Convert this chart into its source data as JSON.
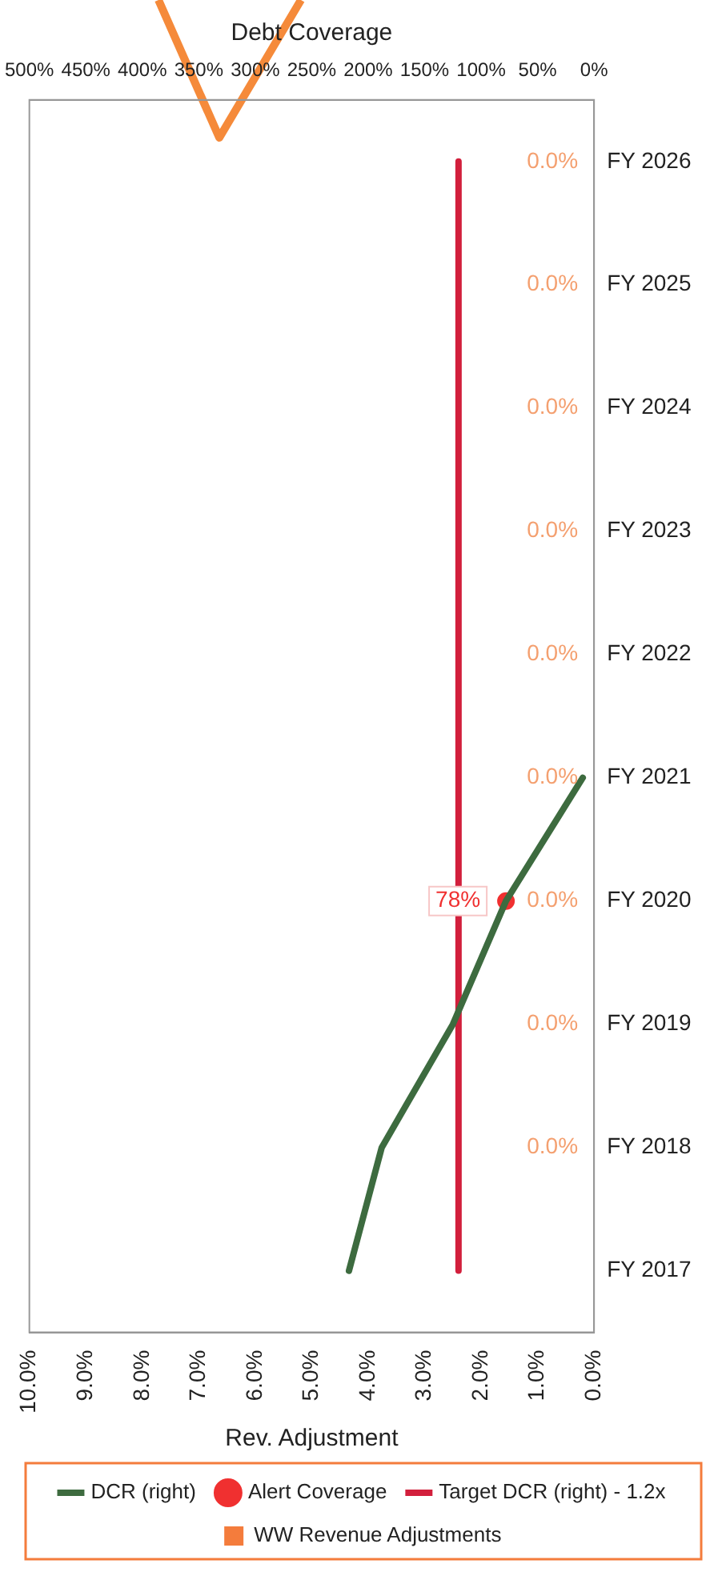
{
  "chart_data": {
    "type": "bar",
    "orientation": "horizontal",
    "xlabel": "Rev. Adjustment",
    "x2label": "Debt Coverage",
    "categories": [
      "FY 2026",
      "FY 2025",
      "FY 2024",
      "FY 2023",
      "FY 2022",
      "FY 2021",
      "FY 2020",
      "FY 2019",
      "FY 2018",
      "FY 2017"
    ],
    "xlim": [
      10,
      0
    ],
    "xticks": [
      {
        "value": 10,
        "label": "10.0%"
      },
      {
        "value": 9,
        "label": "9.0%"
      },
      {
        "value": 8,
        "label": "8.0%"
      },
      {
        "value": 7,
        "label": "7.0%"
      },
      {
        "value": 6,
        "label": "6.0%"
      },
      {
        "value": 5,
        "label": "5.0%"
      },
      {
        "value": 4,
        "label": "4.0%"
      },
      {
        "value": 3,
        "label": "3.0%"
      },
      {
        "value": 2,
        "label": "2.0%"
      },
      {
        "value": 1,
        "label": "1.0%"
      },
      {
        "value": 0,
        "label": "0.0%"
      }
    ],
    "x2lim": [
      500,
      0
    ],
    "x2ticks": [
      {
        "value": 500,
        "label": "500%"
      },
      {
        "value": 450,
        "label": "450%"
      },
      {
        "value": 400,
        "label": "400%"
      },
      {
        "value": 350,
        "label": "350%"
      },
      {
        "value": 300,
        "label": "300%"
      },
      {
        "value": 250,
        "label": "250%"
      },
      {
        "value": 200,
        "label": "200%"
      },
      {
        "value": 150,
        "label": "150%"
      },
      {
        "value": 100,
        "label": "100%"
      },
      {
        "value": 50,
        "label": "50%"
      },
      {
        "value": 0,
        "label": "0%"
      }
    ],
    "series": [
      {
        "name": "WW Revenue Adjustments",
        "type": "bar",
        "color": "#f47c3c",
        "values": [
          0,
          0,
          0,
          0,
          0,
          0,
          0,
          0,
          0,
          null
        ],
        "value_labels": [
          "0.0%",
          "0.0%",
          "0.0%",
          "0.0%",
          "0.0%",
          "0.0%",
          "0.0%",
          "0.0%",
          "0.0%",
          null
        ]
      },
      {
        "name": "DCR (right)",
        "type": "line",
        "axis": "x2",
        "color": "#3d6b3f",
        "marker": "none",
        "values": [
          null,
          null,
          null,
          null,
          null,
          10,
          78,
          125,
          188,
          217
        ]
      },
      {
        "name": "Alert Coverage",
        "type": "scatter",
        "axis": "x2",
        "color": "#f03030",
        "marker": "circle",
        "values": [
          null,
          null,
          null,
          null,
          null,
          null,
          78,
          null,
          null,
          null
        ],
        "value_labels": [
          null,
          null,
          null,
          null,
          null,
          null,
          "78%",
          null,
          null,
          null
        ]
      },
      {
        "name": "Target DCR (right) - 1.2x",
        "type": "line",
        "axis": "x2",
        "color": "#d21f3c",
        "marker": "none",
        "values": [
          120,
          120,
          120,
          120,
          120,
          120,
          120,
          120,
          120,
          120
        ]
      }
    ],
    "legend": "bottom",
    "grid": false
  }
}
